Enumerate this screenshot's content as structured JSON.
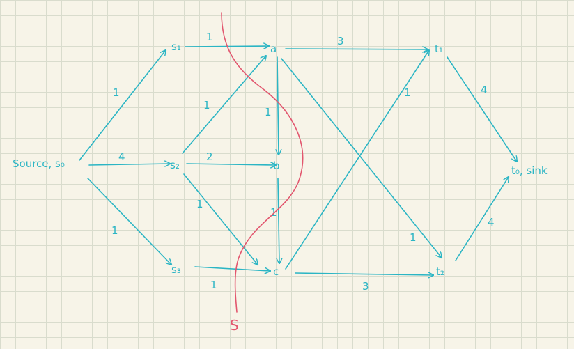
{
  "nodes": {
    "s0": "Source, s₀",
    "s1": "s₁",
    "s2": "s₂",
    "s3": "s₃",
    "a": "a",
    "b": "b",
    "c": "c",
    "t1": "t₁",
    "t2": "t₂",
    "t0": "t₀, sink"
  },
  "cut_label": "S",
  "colors": {
    "graph": "#2bb5c4",
    "cut": "#e2566e",
    "paper": "#f7f4e8",
    "grid": "#d9dccd"
  },
  "edges": [
    {
      "from": "s0",
      "to": "s1",
      "capacity": "1"
    },
    {
      "from": "s0",
      "to": "s2",
      "capacity": "4"
    },
    {
      "from": "s0",
      "to": "s3",
      "capacity": "1"
    },
    {
      "from": "s1",
      "to": "a",
      "capacity": "1"
    },
    {
      "from": "s2",
      "to": "a",
      "capacity": "1"
    },
    {
      "from": "s2",
      "to": "b",
      "capacity": "2"
    },
    {
      "from": "s2",
      "to": "c",
      "capacity": "1"
    },
    {
      "from": "s3",
      "to": "c",
      "capacity": "1"
    },
    {
      "from": "a",
      "to": "b",
      "capacity": "1"
    },
    {
      "from": "b",
      "to": "c",
      "capacity": "1"
    },
    {
      "from": "a",
      "to": "t1",
      "capacity": "3"
    },
    {
      "from": "a",
      "to": "t2",
      "capacity": "1"
    },
    {
      "from": "c",
      "to": "t1",
      "capacity": "1"
    },
    {
      "from": "c",
      "to": "t2",
      "capacity": "3"
    },
    {
      "from": "t1",
      "to": "t0",
      "capacity": "4"
    },
    {
      "from": "t2",
      "to": "t0",
      "capacity": "4"
    }
  ]
}
